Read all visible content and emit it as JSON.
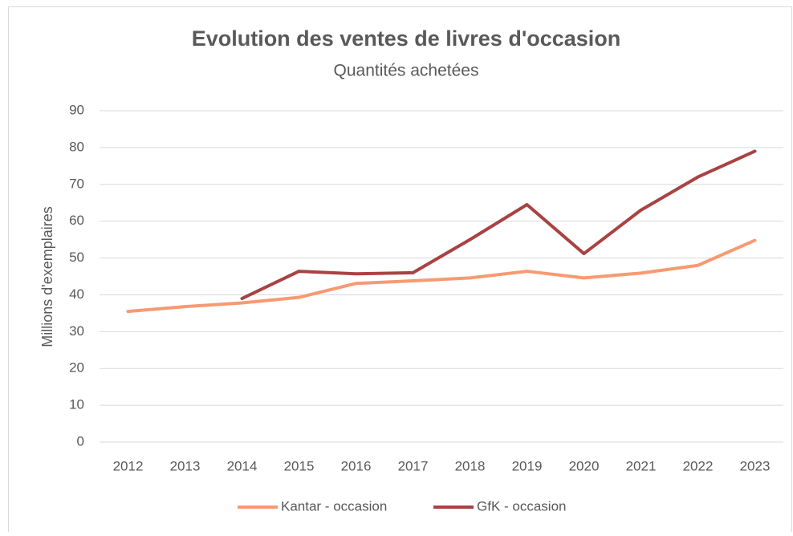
{
  "chart_data": {
    "type": "line",
    "title": "Evolution des ventes de livres d'occasion",
    "subtitle": "Quantités achetées",
    "y_label": "Millions d'exemplaires",
    "categories": [
      "2012",
      "2013",
      "2014",
      "2015",
      "2016",
      "2017",
      "2018",
      "2019",
      "2020",
      "2021",
      "2022",
      "2023"
    ],
    "series": [
      {
        "name": "Kantar - occasion",
        "color": "#f79a72",
        "values": [
          35.5,
          36.8,
          37.8,
          39.3,
          43.1,
          43.8,
          44.6,
          46.4,
          44.6,
          45.9,
          48,
          54.8
        ]
      },
      {
        "name": "GfK - occasion",
        "color": "#a94242",
        "values": [
          null,
          null,
          39,
          46.4,
          45.7,
          46,
          55,
          64.5,
          51.2,
          63,
          72,
          79
        ]
      }
    ],
    "ylim": [
      0,
      90
    ],
    "yticks": [
      0,
      10,
      20,
      30,
      40,
      50,
      60,
      70,
      80,
      90
    ],
    "grid": true,
    "legend": "bottom"
  }
}
